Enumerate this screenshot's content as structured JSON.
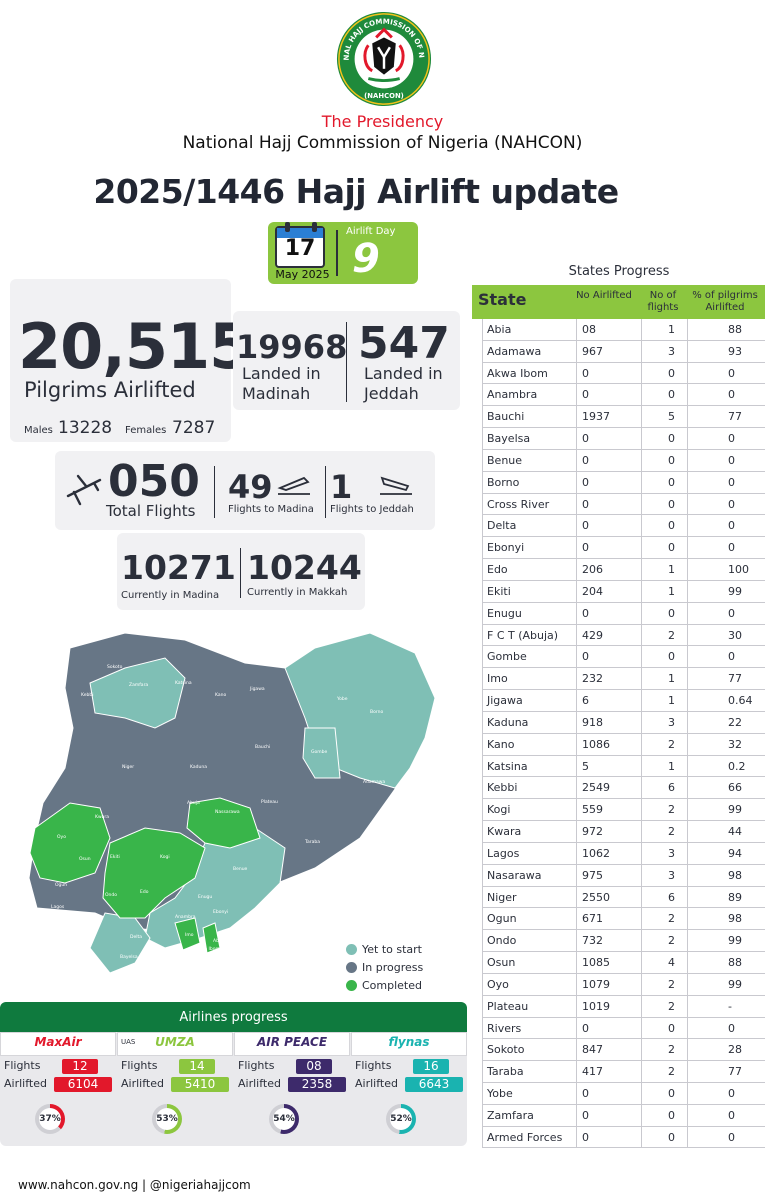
{
  "header": {
    "presidency": "The Presidency",
    "commission": "National Hajj Commission of Nigeria (NAHCON)",
    "title": "2025/1446 Hajj Airlift update",
    "seal_text": "NATIONAL HAJJ COMMISSION OF NIGERIA",
    "seal_abbrev": "(NAHCON)"
  },
  "date": {
    "day": "17",
    "month": "May 2025"
  },
  "airlift_day": {
    "label": "Airlift Day",
    "value": "9"
  },
  "pilgrims": {
    "total": "20,515",
    "label": "Pilgrims Airlifted",
    "males_label": "Males",
    "males": "13228",
    "females_label": "Females",
    "females": "7287"
  },
  "landed": {
    "madinah_value": "19968",
    "madinah_line1": "Landed in",
    "madinah_line2": "Madinah",
    "jeddah_value": "547",
    "jeddah_line1": "Landed in",
    "jeddah_line2": "Jeddah"
  },
  "flights": {
    "total": "050",
    "total_label": "Total Flights",
    "madina_value": "49",
    "madina_label": "Flights to Madina",
    "jeddah_value": "1",
    "jeddah_label": "Flights to Jeddah"
  },
  "current": {
    "madina_value": "10271",
    "madina_label": "Currently in Madina",
    "makkah_value": "10244",
    "makkah_label": "Currently in Makkah"
  },
  "states_table": {
    "title": "States Progress",
    "headers": {
      "state": "State",
      "no_airlifted": "No Airlifted",
      "no_flights": "No of flights",
      "pct": "% of pilgrims Airlifted"
    },
    "rows": [
      {
        "state": "Abia",
        "airlifted": "08",
        "flights": "1",
        "pct": "88"
      },
      {
        "state": "Adamawa",
        "airlifted": "967",
        "flights": "3",
        "pct": "93"
      },
      {
        "state": "Akwa Ibom",
        "airlifted": "0",
        "flights": "0",
        "pct": "0"
      },
      {
        "state": "Anambra",
        "airlifted": "0",
        "flights": "0",
        "pct": "0"
      },
      {
        "state": "Bauchi",
        "airlifted": "1937",
        "flights": "5",
        "pct": "77"
      },
      {
        "state": "Bayelsa",
        "airlifted": "0",
        "flights": "0",
        "pct": "0"
      },
      {
        "state": "Benue",
        "airlifted": "0",
        "flights": "0",
        "pct": "0"
      },
      {
        "state": "Borno",
        "airlifted": "0",
        "flights": "0",
        "pct": "0"
      },
      {
        "state": "Cross River",
        "airlifted": "0",
        "flights": "0",
        "pct": "0"
      },
      {
        "state": "Delta",
        "airlifted": "0",
        "flights": "0",
        "pct": "0"
      },
      {
        "state": "Ebonyi",
        "airlifted": "0",
        "flights": "0",
        "pct": "0"
      },
      {
        "state": "Edo",
        "airlifted": "206",
        "flights": "1",
        "pct": "100"
      },
      {
        "state": "Ekiti",
        "airlifted": "204",
        "flights": "1",
        "pct": "99"
      },
      {
        "state": "Enugu",
        "airlifted": "0",
        "flights": "0",
        "pct": "0"
      },
      {
        "state": "F C T (Abuja)",
        "airlifted": "429",
        "flights": "2",
        "pct": "30"
      },
      {
        "state": "Gombe",
        "airlifted": "0",
        "flights": "0",
        "pct": "0"
      },
      {
        "state": "Imo",
        "airlifted": "232",
        "flights": "1",
        "pct": "77"
      },
      {
        "state": "Jigawa",
        "airlifted": "6",
        "flights": "1",
        "pct": "0.64"
      },
      {
        "state": "Kaduna",
        "airlifted": "918",
        "flights": "3",
        "pct": "22"
      },
      {
        "state": "Kano",
        "airlifted": "1086",
        "flights": "2",
        "pct": "32"
      },
      {
        "state": "Katsina",
        "airlifted": "5",
        "flights": "1",
        "pct": "0.2"
      },
      {
        "state": "Kebbi",
        "airlifted": "2549",
        "flights": "6",
        "pct": "66"
      },
      {
        "state": "Kogi",
        "airlifted": "559",
        "flights": "2",
        "pct": "99"
      },
      {
        "state": "Kwara",
        "airlifted": "972",
        "flights": "2",
        "pct": "44"
      },
      {
        "state": "Lagos",
        "airlifted": "1062",
        "flights": "3",
        "pct": "94"
      },
      {
        "state": "Nasarawa",
        "airlifted": "975",
        "flights": "3",
        "pct": "98"
      },
      {
        "state": "Niger",
        "airlifted": "2550",
        "flights": "6",
        "pct": "89"
      },
      {
        "state": "Ogun",
        "airlifted": "671",
        "flights": "2",
        "pct": "98"
      },
      {
        "state": "Ondo",
        "airlifted": "732",
        "flights": "2",
        "pct": "99"
      },
      {
        "state": "Osun",
        "airlifted": "1085",
        "flights": "4",
        "pct": "88"
      },
      {
        "state": "Oyo",
        "airlifted": "1079",
        "flights": "2",
        "pct": "99"
      },
      {
        "state": "Plateau",
        "airlifted": "1019",
        "flights": "2",
        "pct": "-"
      },
      {
        "state": "Rivers",
        "airlifted": "0",
        "flights": "0",
        "pct": "0"
      },
      {
        "state": "Sokoto",
        "airlifted": "847",
        "flights": "2",
        "pct": "28"
      },
      {
        "state": "Taraba",
        "airlifted": "417",
        "flights": "2",
        "pct": "77"
      },
      {
        "state": "Yobe",
        "airlifted": "0",
        "flights": "0",
        "pct": "0"
      },
      {
        "state": "Zamfara",
        "airlifted": "0",
        "flights": "0",
        "pct": "0"
      },
      {
        "state": "Armed Forces",
        "airlifted": "0",
        "flights": "0",
        "pct": "0"
      }
    ]
  },
  "map": {
    "labels": [
      "Sokoto",
      "Kebbi",
      "Zamfara",
      "Katsina",
      "Kano",
      "Jigawa",
      "Yobe",
      "Borno",
      "Niger",
      "Kaduna",
      "Bauchi",
      "Gombe",
      "Adamawa",
      "Kwara",
      "Abuja",
      "Plateau",
      "Oyo",
      "Nassarawa",
      "Taraba",
      "Osun",
      "Ekiti",
      "Kogi",
      "Benue",
      "Ogun",
      "Ondo",
      "Edo",
      "Enugu",
      "Lagos",
      "Delta",
      "Anambra",
      "Ebonyi",
      "Cross River",
      "Imo",
      "Bayelsa",
      "Rivers",
      "Akwa Ibom",
      "Abia"
    ],
    "legend": [
      {
        "label": "Yet to start",
        "color": "#7fbfb5"
      },
      {
        "label": "In progress",
        "color": "#677686"
      },
      {
        "label": "Completed",
        "color": "#39b54a"
      }
    ]
  },
  "airlines": {
    "title": "Airlines progress",
    "flights_label": "Flights",
    "airlifted_label": "Airlifted",
    "list": [
      {
        "name": "MaxAir",
        "flights": "12",
        "airlifted": "6104",
        "pct": "37%",
        "pct_value": 37,
        "color": "#e2182b"
      },
      {
        "name": "UMZA",
        "prefix": "UAS",
        "flights": "14",
        "airlifted": "5410",
        "pct": "53%",
        "pct_value": 53,
        "color": "#8cc63f"
      },
      {
        "name": "AIR PEACE",
        "flights": "08",
        "airlifted": "2358",
        "pct": "54%",
        "pct_value": 54,
        "color": "#3d2a6b"
      },
      {
        "name": "flynas",
        "flights": "16",
        "airlifted": "6643",
        "pct": "52%",
        "pct_value": 52,
        "color": "#1ab3b0"
      }
    ]
  },
  "footer": "www.nahcon.gov.ng | @nigeriahajjcom"
}
